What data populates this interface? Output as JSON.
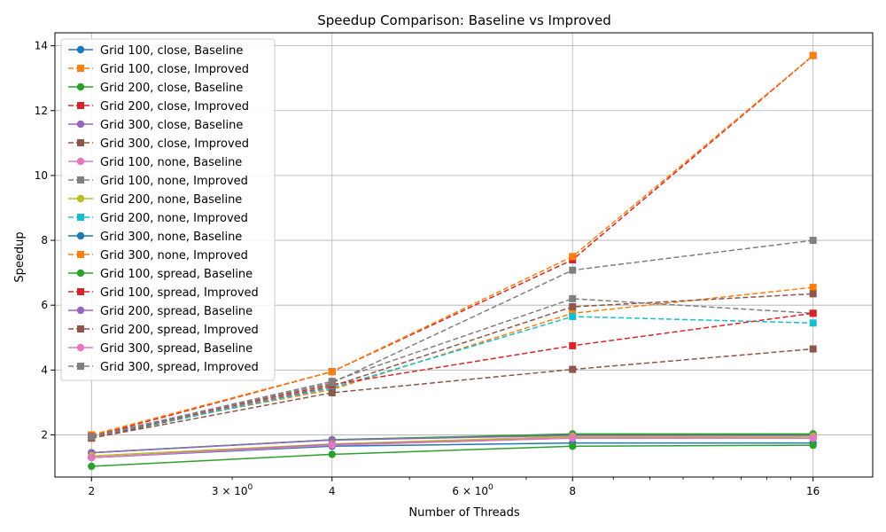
{
  "chart_data": {
    "type": "line",
    "title": "Speedup Comparison: Baseline vs Improved",
    "xlabel": "Number of Threads",
    "ylabel": "Speedup",
    "x_scale": "log",
    "x": [
      2,
      4,
      8,
      16
    ],
    "x_ticks_major": [
      "2",
      "4",
      "8",
      "16"
    ],
    "x_ticks_minor": [
      {
        "value": 3,
        "label": "3 × 10^0"
      },
      {
        "value": 6,
        "label": "6 × 10^0"
      }
    ],
    "xlim": [
      1.8,
      19.0
    ],
    "ylim": [
      0.7,
      14.4
    ],
    "y_ticks": [
      2,
      4,
      6,
      8,
      10,
      12,
      14
    ],
    "grid": true,
    "legend_position": "upper-left",
    "series": [
      {
        "name": "Grid 100, close, Baseline",
        "color": "#1f77b4",
        "style": "solid",
        "marker": "circle",
        "values": [
          1.45,
          1.85,
          2.0,
          2.0
        ]
      },
      {
        "name": "Grid 100, close, Improved",
        "color": "#ff7f0e",
        "style": "dashed",
        "marker": "square",
        "values": [
          2.0,
          3.4,
          5.75,
          6.55
        ]
      },
      {
        "name": "Grid 200, close, Baseline",
        "color": "#2ca02c",
        "style": "solid",
        "marker": "circle",
        "values": [
          1.45,
          1.85,
          2.03,
          2.03
        ]
      },
      {
        "name": "Grid 200, close, Improved",
        "color": "#d62728",
        "style": "dashed",
        "marker": "square",
        "values": [
          1.95,
          3.95,
          7.4,
          13.7
        ]
      },
      {
        "name": "Grid 300, close, Baseline",
        "color": "#9467bd",
        "style": "solid",
        "marker": "circle",
        "values": [
          1.45,
          1.84,
          1.98,
          1.97
        ]
      },
      {
        "name": "Grid 300, close, Improved",
        "color": "#8c564b",
        "style": "dashed",
        "marker": "square",
        "values": [
          1.9,
          3.5,
          5.95,
          6.35
        ]
      },
      {
        "name": "Grid 100, none, Baseline",
        "color": "#e377c2",
        "style": "solid",
        "marker": "circle",
        "values": [
          1.3,
          1.7,
          1.92,
          1.9
        ]
      },
      {
        "name": "Grid 100, none, Improved",
        "color": "#7f7f7f",
        "style": "dashed",
        "marker": "square",
        "values": [
          1.95,
          3.65,
          6.2,
          5.75
        ]
      },
      {
        "name": "Grid 200, none, Baseline",
        "color": "#bcbd22",
        "style": "solid",
        "marker": "circle",
        "values": [
          1.35,
          1.72,
          1.95,
          1.95
        ]
      },
      {
        "name": "Grid 200, none, Improved",
        "color": "#17becf",
        "style": "dashed",
        "marker": "square",
        "values": [
          1.95,
          3.45,
          5.65,
          5.45
        ]
      },
      {
        "name": "Grid 300, none, Baseline",
        "color": "#1f77b4",
        "style": "solid",
        "marker": "circle",
        "values": [
          1.3,
          1.65,
          1.75,
          1.75
        ]
      },
      {
        "name": "Grid 300, none, Improved",
        "color": "#ff7f0e",
        "style": "dashed",
        "marker": "square",
        "values": [
          2.0,
          3.95,
          7.5,
          13.7
        ]
      },
      {
        "name": "Grid 100, spread, Baseline",
        "color": "#2ca02c",
        "style": "solid",
        "marker": "circle",
        "values": [
          1.03,
          1.4,
          1.65,
          1.68
        ]
      },
      {
        "name": "Grid 100, spread, Improved",
        "color": "#d62728",
        "style": "dashed",
        "marker": "square",
        "values": [
          1.95,
          3.55,
          4.75,
          5.75
        ]
      },
      {
        "name": "Grid 200, spread, Baseline",
        "color": "#9467bd",
        "style": "solid",
        "marker": "circle",
        "values": [
          1.3,
          1.7,
          1.9,
          1.9
        ]
      },
      {
        "name": "Grid 200, spread, Improved",
        "color": "#8c564b",
        "style": "dashed",
        "marker": "square",
        "values": [
          1.9,
          3.3,
          4.02,
          4.65
        ]
      },
      {
        "name": "Grid 300, spread, Baseline",
        "color": "#e377c2",
        "style": "solid",
        "marker": "circle",
        "values": [
          1.3,
          1.68,
          1.9,
          1.9
        ]
      },
      {
        "name": "Grid 300, spread, Improved",
        "color": "#7f7f7f",
        "style": "dashed",
        "marker": "square",
        "values": [
          1.95,
          3.6,
          7.08,
          8.0
        ]
      }
    ]
  }
}
